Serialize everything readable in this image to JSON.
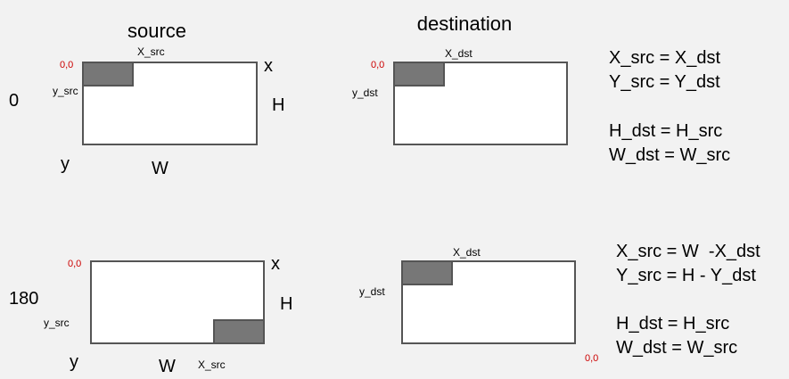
{
  "headers": {
    "source": "source",
    "destination": "destination"
  },
  "rows": [
    {
      "angle": "0",
      "source": {
        "origin": "0,0",
        "x_sub": "X_src",
        "y_sub": "y_src",
        "x_axis": "x",
        "y_axis": "y",
        "width": "W",
        "height": "H"
      },
      "destination": {
        "origin": "0,0",
        "x_sub": "X_dst",
        "y_sub": "y_dst"
      },
      "formulas": [
        "X_src = X_dst",
        "Y_src = Y_dst",
        "H_dst = H_src",
        "W_dst = W_src"
      ]
    },
    {
      "angle": "180",
      "source": {
        "origin": "0,0",
        "x_sub": "X_src",
        "y_sub": "y_src",
        "x_axis": "x",
        "y_axis": "y",
        "width": "W",
        "height": "H"
      },
      "destination": {
        "origin": "0,0",
        "x_sub": "X_dst",
        "y_sub": "y_dst"
      },
      "formulas": [
        "X_src = W  -X_dst",
        "Y_src = H - Y_dst",
        "H_dst = H_src",
        "W_dst = W_src"
      ]
    }
  ],
  "colors": {
    "background": "#f2f2f2",
    "box_fill": "#ffffff",
    "box_stroke": "#555555",
    "subregion_fill": "#777777",
    "origin_label": "#cc0000"
  }
}
